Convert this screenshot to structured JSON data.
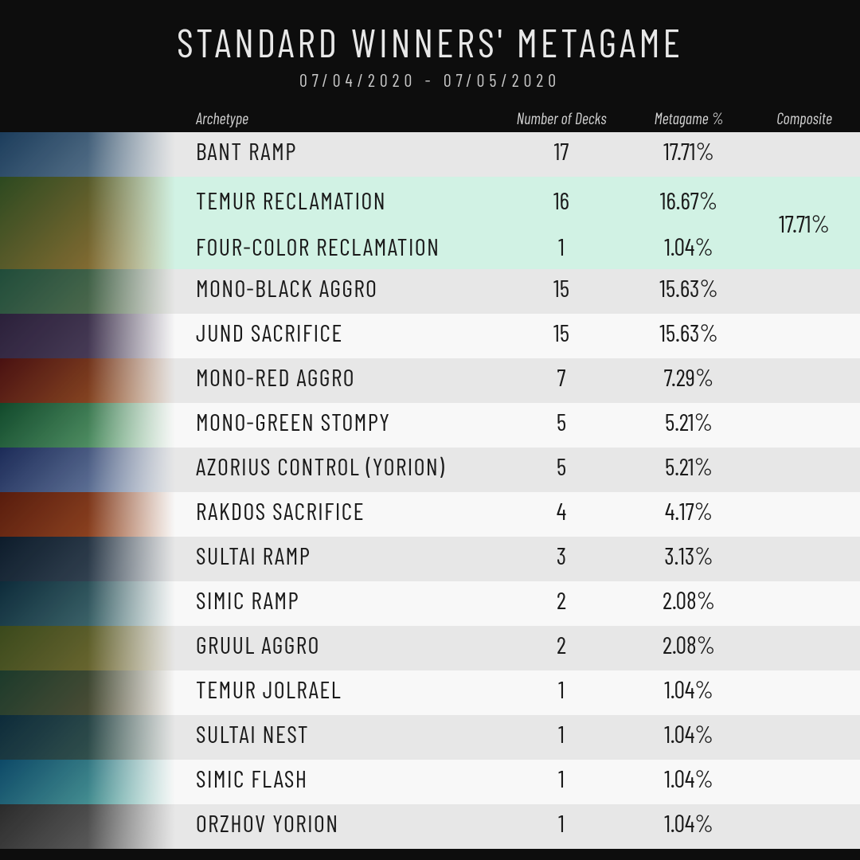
{
  "title": "STANDARD WINNERS' METAGAME",
  "subtitle": "07/04/2020 - 07/05/2020",
  "columns": {
    "archetype": "Archetype",
    "num": "Number of Decks",
    "pct": "Metagame %",
    "comp": "Composite"
  },
  "colors": {
    "page_bg": "#0d0d0d",
    "row_a": "#e7e7e7",
    "row_b": "#f8f8f8",
    "group_bg": "#d1f2e4",
    "title_color": "#e8e8e8",
    "header_color": "#d0d0d0",
    "text_color": "#1a1a1a"
  },
  "thumbs": [
    [
      "#2a4d6e",
      "#8aa3b8"
    ],
    [
      "#3b5a2e",
      "#c28f4a"
    ],
    [
      "#2e5d4a",
      "#7a8f6a"
    ],
    [
      "#3a2e4a",
      "#6a5d7a"
    ],
    [
      "#5a1e1e",
      "#c2773a"
    ],
    [
      "#1e5a3a",
      "#8ad29a"
    ],
    [
      "#2a3a6a",
      "#9ab0d2"
    ],
    [
      "#6a2a1a",
      "#c26a3a"
    ],
    [
      "#1a2a3a",
      "#5a6a7a"
    ],
    [
      "#1a3a4a",
      "#6a9a9a"
    ],
    [
      "#4a5a2a",
      "#9a8a4a"
    ],
    [
      "#2a4a3a",
      "#7a6a4a"
    ],
    [
      "#1a3a4a",
      "#5a7a6a"
    ],
    [
      "#1a5a7a",
      "#7ad2c2"
    ],
    [
      "#3a3a3a",
      "#8a8a8a"
    ]
  ],
  "rows": [
    {
      "archetype": "BANT RAMP",
      "num": "17",
      "pct": "17.71%"
    },
    {
      "group": true,
      "composite": "17.71%",
      "sub": [
        {
          "archetype": "TEMUR RECLAMATION",
          "num": "16",
          "pct": "16.67%"
        },
        {
          "archetype": "FOUR-COLOR RECLAMATION",
          "num": "1",
          "pct": "1.04%"
        }
      ]
    },
    {
      "archetype": "MONO-BLACK AGGRO",
      "num": "15",
      "pct": "15.63%"
    },
    {
      "archetype": "JUND SACRIFICE",
      "num": "15",
      "pct": "15.63%"
    },
    {
      "archetype": "MONO-RED AGGRO",
      "num": "7",
      "pct": "7.29%"
    },
    {
      "archetype": "MONO-GREEN STOMPY",
      "num": "5",
      "pct": "5.21%"
    },
    {
      "archetype": "AZORIUS CONTROL (YORION)",
      "num": "5",
      "pct": "5.21%"
    },
    {
      "archetype": "RAKDOS SACRIFICE",
      "num": "4",
      "pct": "4.17%"
    },
    {
      "archetype": "SULTAI RAMP",
      "num": "3",
      "pct": "3.13%"
    },
    {
      "archetype": "SIMIC RAMP",
      "num": "2",
      "pct": "2.08%"
    },
    {
      "archetype": "GRUUL AGGRO",
      "num": "2",
      "pct": "2.08%"
    },
    {
      "archetype": "TEMUR JOLRAEL",
      "num": "1",
      "pct": "1.04%"
    },
    {
      "archetype": "SULTAI NEST",
      "num": "1",
      "pct": "1.04%"
    },
    {
      "archetype": "SIMIC FLASH",
      "num": "1",
      "pct": "1.04%"
    },
    {
      "archetype": "ORZHOV YORION",
      "num": "1",
      "pct": "1.04%"
    }
  ]
}
